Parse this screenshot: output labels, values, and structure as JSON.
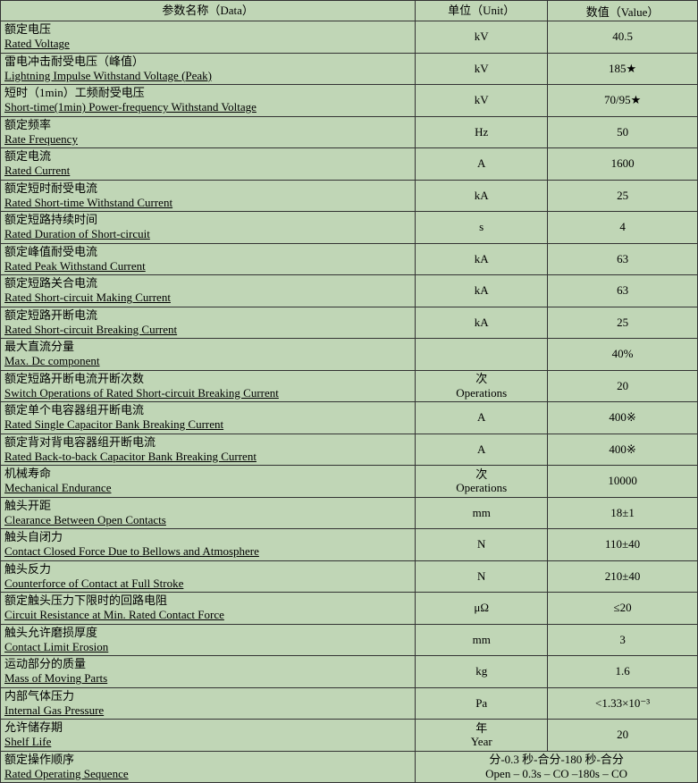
{
  "colors": {
    "background": "#c0d6b6",
    "border": "#333333",
    "text": "#000000"
  },
  "font": {
    "family": "SimSun, 宋体, serif",
    "size_pt": 10
  },
  "headers": {
    "param": "参数名称（Data）",
    "unit": "单位（Unit）",
    "value": "数值（Value）"
  },
  "rows": [
    {
      "cn": "额定电压",
      "en": "Rated Voltage",
      "unit": "kV",
      "value": "40.5"
    },
    {
      "cn": "雷电冲击耐受电压（峰值）",
      "en": "Lightning Impulse Withstand Voltage (Peak)",
      "unit": "kV",
      "value": "185★"
    },
    {
      "cn": "短时（1min）工频耐受电压",
      "en": "Short-time(1min) Power-frequency Withstand Voltage",
      "unit": "kV",
      "value": "70/95★"
    },
    {
      "cn": "额定频率",
      "en": "Rate Frequency",
      "unit": "Hz",
      "value": "50"
    },
    {
      "cn": "额定电流",
      "en": "Rated Current",
      "unit": "A",
      "value": "1600"
    },
    {
      "cn": "额定短时耐受电流",
      "en": "Rated Short-time Withstand Current",
      "unit": "kA",
      "value": "25"
    },
    {
      "cn": "额定短路持续时间",
      "en": "Rated Duration of Short-circuit",
      "unit": "s",
      "value": "4"
    },
    {
      "cn": "额定峰值耐受电流",
      "en": "Rated Peak Withstand Current",
      "unit": "kA",
      "value": "63"
    },
    {
      "cn": "额定短路关合电流",
      "en": "Rated Short-circuit Making Current",
      "unit": "kA",
      "value": "63"
    },
    {
      "cn": "额定短路开断电流",
      "en": "Rated Short-circuit Breaking Current",
      "unit": "kA",
      "value": "25"
    },
    {
      "cn": "最大直流分量",
      "en": "Max. Dc component",
      "unit": "",
      "value": "40%"
    },
    {
      "cn": "额定短路开断电流开断次数",
      "en": "Switch Operations of Rated Short-circuit Breaking Current",
      "unit_cn": "次",
      "unit_en": "Operations",
      "value": "20"
    },
    {
      "cn": "额定单个电容器组开断电流",
      "en": "Rated Single Capacitor Bank Breaking Current",
      "unit": "A",
      "value": "400※"
    },
    {
      "cn": "额定背对背电容器组开断电流",
      "en": "Rated Back-to-back Capacitor Bank Breaking Current",
      "unit": "A",
      "value": "400※"
    },
    {
      "cn": "机械寿命",
      "en": "Mechanical Endurance",
      "unit_cn": "次",
      "unit_en": "Operations",
      "value": "10000"
    },
    {
      "cn": "触头开距",
      "en": "Clearance Between Open Contacts",
      "unit": "mm",
      "value": "18±1"
    },
    {
      "cn": "触头自闭力",
      "en": "Contact Closed Force Due to Bellows and Atmosphere",
      "unit": "N",
      "value": "110±40"
    },
    {
      "cn": "触头反力",
      "en": "Counterforce of Contact at Full Stroke",
      "unit": "N",
      "value": "210±40"
    },
    {
      "cn": "额定触头压力下限时的回路电阻",
      "en": "Circuit Resistance at Min. Rated Contact Force",
      "unit": "μΩ",
      "value": "≤20"
    },
    {
      "cn": "触头允许磨损厚度",
      "en": "Contact Limit Erosion",
      "unit": "mm",
      "value": "3"
    },
    {
      "cn": "运动部分的质量",
      "en": "Mass of Moving Parts",
      "unit": "kg",
      "value": "1.6"
    },
    {
      "cn": "内部气体压力",
      "en": "Internal Gas Pressure",
      "unit": "Pa",
      "value": "<1.33×10⁻³"
    },
    {
      "cn": "允许储存期",
      "en": "Shelf Life",
      "unit_cn": "年",
      "unit_en": "Year",
      "value": "20"
    }
  ],
  "seq_row": {
    "cn": "额定操作顺序",
    "en": "Rated Operating Sequence",
    "val_cn": "分-0.3 秒-合分-180 秒-合分",
    "val_en": "Open – 0.3s – CO –180s – CO"
  }
}
